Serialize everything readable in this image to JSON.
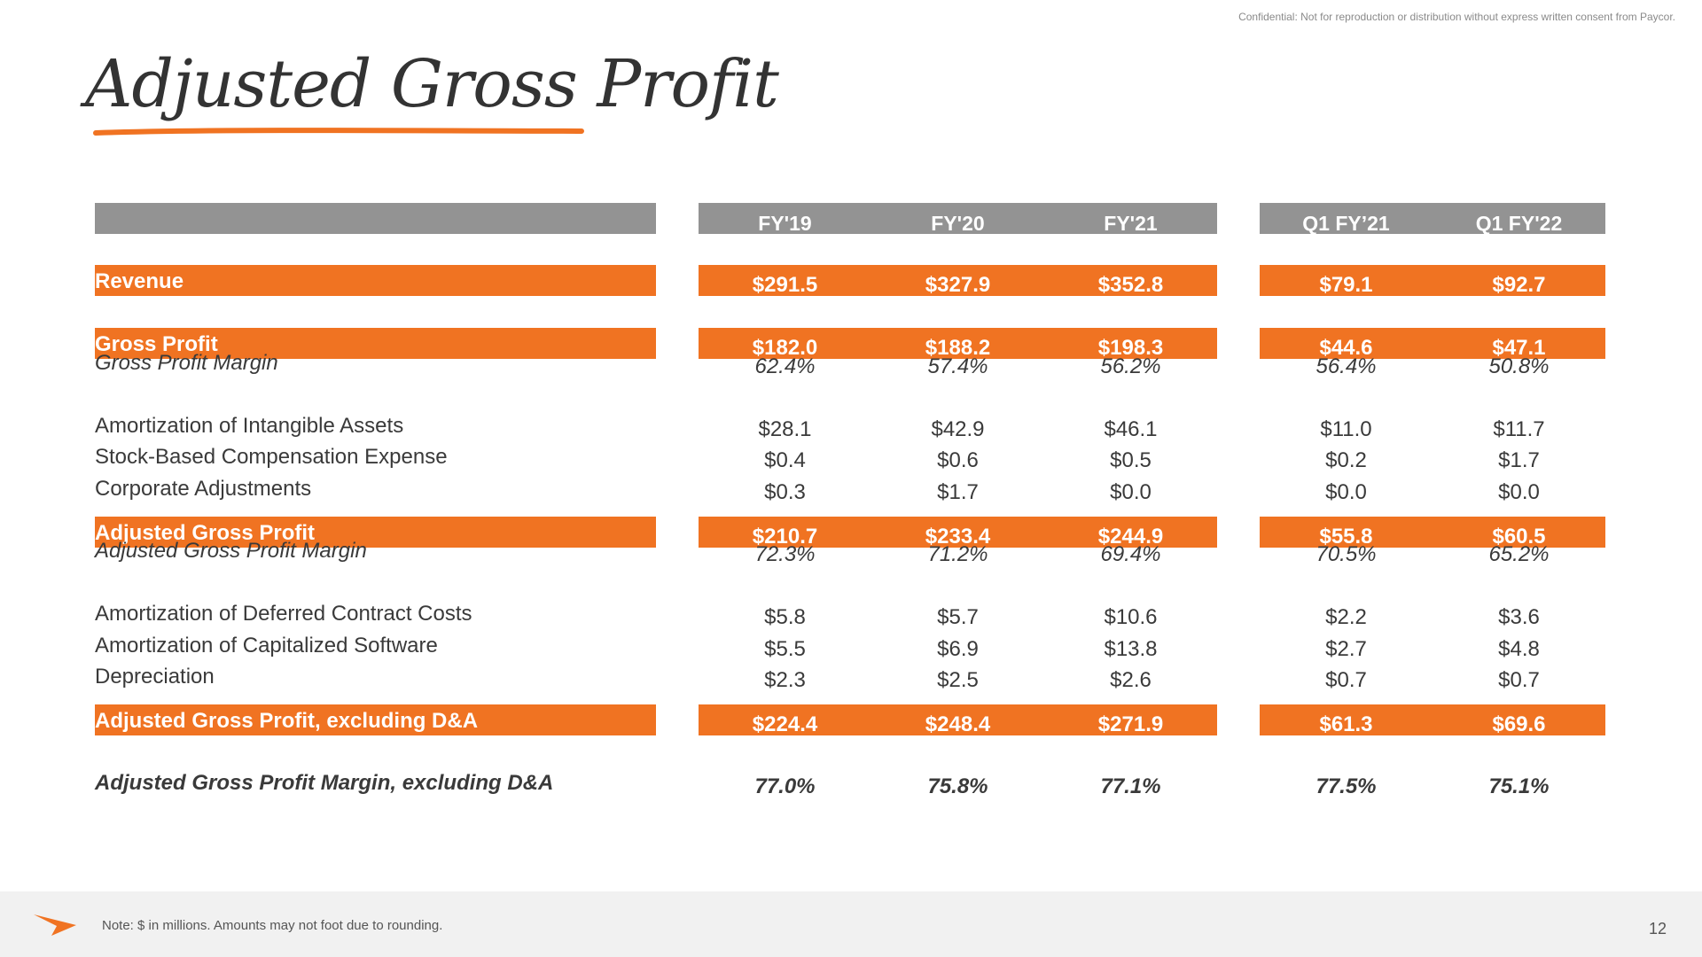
{
  "confidential": "Confidential: Not for reproduction or distribution without express written consent from Paycor.",
  "title": "Adjusted Gross Profit",
  "columns": [
    "FY'19",
    "FY'20",
    "FY'21",
    "Q1 FY’21",
    "Q1 FY'22"
  ],
  "rows": [
    {
      "label": "Revenue",
      "style": "highlight",
      "values": [
        "$291.5",
        "$327.9",
        "$352.8",
        "$79.1",
        "$92.7"
      ]
    },
    {
      "label": "Gross Profit",
      "style": "highlight",
      "values": [
        "$182.0",
        "$188.2",
        "$198.3",
        "$44.6",
        "$47.1"
      ]
    },
    {
      "label": "Gross Profit Margin",
      "style": "italic",
      "values": [
        "62.4%",
        "57.4%",
        "56.2%",
        "56.4%",
        "50.8%"
      ]
    },
    {
      "label": "Amortization of Intangible Assets",
      "style": "normal",
      "values": [
        "$28.1",
        "$42.9",
        "$46.1",
        "$11.0",
        "$11.7"
      ]
    },
    {
      "label": "Stock-Based Compensation Expense",
      "style": "normal",
      "values": [
        "$0.4",
        "$0.6",
        "$0.5",
        "$0.2",
        "$1.7"
      ]
    },
    {
      "label": "Corporate Adjustments",
      "style": "normal",
      "values": [
        "$0.3",
        "$1.7",
        "$0.0",
        "$0.0",
        "$0.0"
      ]
    },
    {
      "label": "Adjusted Gross Profit",
      "style": "highlight",
      "values": [
        "$210.7",
        "$233.4",
        "$244.9",
        "$55.8",
        "$60.5"
      ]
    },
    {
      "label": "Adjusted Gross Profit Margin",
      "style": "italic",
      "values": [
        "72.3%",
        "71.2%",
        "69.4%",
        "70.5%",
        "65.2%"
      ]
    },
    {
      "label": "Amortization of Deferred Contract Costs",
      "style": "normal",
      "values": [
        "$5.8",
        "$5.7",
        "$10.6",
        "$2.2",
        "$3.6"
      ]
    },
    {
      "label": "Amortization of Capitalized Software",
      "style": "normal",
      "values": [
        "$5.5",
        "$6.9",
        "$13.8",
        "$2.7",
        "$4.8"
      ]
    },
    {
      "label": "Depreciation",
      "style": "normal",
      "values": [
        "$2.3",
        "$2.5",
        "$2.6",
        "$0.7",
        "$0.7"
      ]
    },
    {
      "label": "Adjusted Gross Profit, excluding D&A",
      "style": "highlight",
      "values": [
        "$224.4",
        "$248.4",
        "$271.9",
        "$61.3",
        "$69.6"
      ]
    },
    {
      "label": "Adjusted Gross Profit Margin, excluding D&A",
      "style": "bold-italic",
      "values": [
        "77.0%",
        "75.8%",
        "77.1%",
        "77.5%",
        "75.1%"
      ]
    }
  ],
  "footer": {
    "note": "Note: $ in millions. Amounts may not foot due to rounding.",
    "page_number": "12"
  },
  "colors": {
    "accent_orange": "#f07322",
    "header_gray": "#939393",
    "footer_bg": "#f1f1f1",
    "text": "#3a3a3a"
  },
  "icons": {
    "logo": "paycor-arrow-logo"
  }
}
